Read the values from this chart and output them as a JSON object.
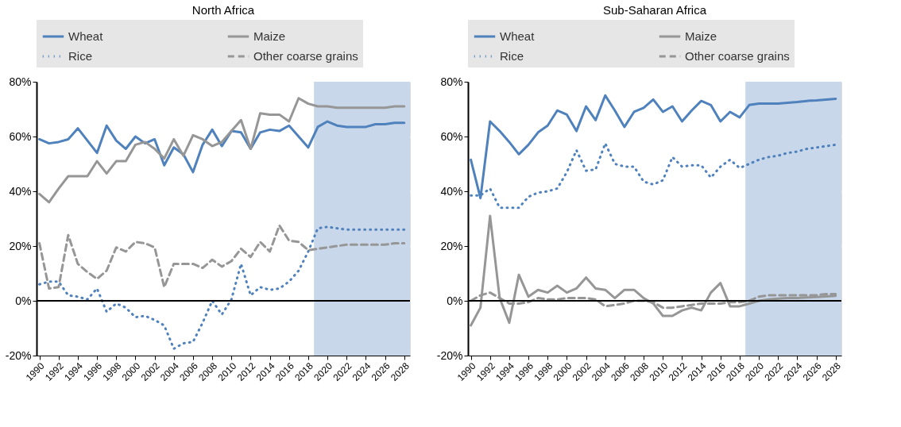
{
  "chart_data": [
    {
      "type": "line",
      "title": "North Africa",
      "x": [
        1990,
        1991,
        1992,
        1993,
        1994,
        1995,
        1996,
        1997,
        1998,
        1999,
        2000,
        2001,
        2002,
        2003,
        2004,
        2005,
        2006,
        2007,
        2008,
        2009,
        2010,
        2011,
        2012,
        2013,
        2014,
        2015,
        2016,
        2017,
        2018,
        2019,
        2020,
        2021,
        2022,
        2023,
        2024,
        2025,
        2026,
        2027,
        2028
      ],
      "series": [
        {
          "name": "Wheat",
          "color": "#4f81bd",
          "line_style": "solid",
          "values": [
            59,
            57.5,
            58,
            59,
            63,
            58.5,
            54,
            64,
            58.5,
            55.5,
            60,
            57.5,
            59,
            49.5,
            56,
            53.5,
            47,
            57,
            62.5,
            56.5,
            62,
            61.5,
            55.5,
            61.5,
            62.5,
            62,
            64,
            60,
            56,
            63.5,
            65.5,
            64,
            63.5,
            63.5,
            63.5,
            64.5,
            64.5,
            65,
            65
          ]
        },
        {
          "name": "Maize",
          "color": "#969696",
          "line_style": "solid",
          "values": [
            39,
            36,
            41,
            45.5,
            45.5,
            45.5,
            51,
            46.5,
            51,
            51,
            57,
            58,
            55.5,
            52,
            59,
            53,
            60.5,
            59,
            56.5,
            58,
            62,
            66,
            55.5,
            68.5,
            68,
            68,
            65.5,
            74,
            72,
            71,
            71,
            70.5,
            70.5,
            70.5,
            70.5,
            70.5,
            70.5,
            71,
            71
          ]
        },
        {
          "name": "Rice",
          "color": "#4f81bd",
          "line_style": "dotted",
          "values": [
            6,
            7,
            7,
            2,
            1.5,
            0.5,
            4.5,
            -4,
            -1,
            -2.5,
            -6,
            -5.5,
            -7,
            -9,
            -17.5,
            -15.5,
            -15,
            -8,
            0,
            -5,
            0.5,
            13.5,
            2,
            5,
            4,
            4.5,
            7,
            11,
            18,
            26.5,
            27,
            26.5,
            26,
            26,
            26,
            26,
            26,
            26,
            26
          ]
        },
        {
          "name": "Other coarse grains",
          "color": "#969696",
          "line_style": "dashed",
          "values": [
            21,
            4.5,
            5,
            24,
            13.5,
            10.5,
            8,
            11,
            19.5,
            18,
            21.5,
            21,
            19.5,
            5,
            13.5,
            13.5,
            13.5,
            12,
            15,
            12.5,
            14.5,
            19,
            16,
            21.5,
            18,
            27.5,
            22,
            21.5,
            18.5,
            19,
            19.5,
            20,
            20.5,
            20.5,
            20.5,
            20.5,
            20.5,
            21,
            21
          ]
        }
      ],
      "xlim": [
        1989.7,
        2028.6
      ],
      "xticks": [
        1990,
        1992,
        1994,
        1996,
        1998,
        2000,
        2002,
        2004,
        2006,
        2008,
        2010,
        2012,
        2014,
        2016,
        2018,
        2020,
        2022,
        2024,
        2026,
        2028
      ],
      "ylim": [
        -20,
        80
      ],
      "yticks": [
        {
          "value": -20,
          "label": "-20%"
        },
        {
          "value": 0,
          "label": "0%"
        },
        {
          "value": 20,
          "label": "20%"
        },
        {
          "value": 40,
          "label": "40%"
        },
        {
          "value": 60,
          "label": "60%"
        },
        {
          "value": 80,
          "label": "80%"
        }
      ],
      "bands": [
        {
          "axis": "x",
          "from": 2018.6,
          "to": 2028.6,
          "color": "#c8d7ea"
        }
      ],
      "ref_lines": [
        {
          "axis": "y",
          "value": 0,
          "color": "#000000"
        }
      ],
      "grid": true,
      "legend": "top"
    },
    {
      "type": "line",
      "title": "Sub-Saharan Africa",
      "x": [
        1990,
        1991,
        1992,
        1993,
        1994,
        1995,
        1996,
        1997,
        1998,
        1999,
        2000,
        2001,
        2002,
        2003,
        2004,
        2005,
        2006,
        2007,
        2008,
        2009,
        2010,
        2011,
        2012,
        2013,
        2014,
        2015,
        2016,
        2017,
        2018,
        2019,
        2020,
        2021,
        2022,
        2023,
        2024,
        2025,
        2026,
        2027,
        2028
      ],
      "series": [
        {
          "name": "Wheat",
          "color": "#4f81bd",
          "line_style": "solid",
          "values": [
            51.5,
            37.5,
            65.5,
            62,
            58,
            53.5,
            57,
            61.5,
            64,
            69.5,
            68,
            62,
            71,
            66,
            75,
            69.5,
            63.5,
            69,
            70.5,
            73.5,
            69,
            71,
            65.5,
            69.5,
            73,
            71.5,
            65.5,
            69,
            67,
            71.5,
            72,
            72,
            72,
            72.3,
            72.6,
            73,
            73.2,
            73.5,
            73.8
          ]
        },
        {
          "name": "Maize",
          "color": "#969696",
          "line_style": "solid",
          "values": [
            -9,
            -2.5,
            31,
            1,
            -8,
            9.5,
            1.5,
            4,
            3,
            5.5,
            3,
            4.5,
            8.5,
            4.5,
            4,
            1,
            4,
            4,
            1,
            -1,
            -5.5,
            -5.5,
            -3.5,
            -2.5,
            -3.5,
            3,
            6.5,
            -2,
            -2,
            -1,
            0,
            0.5,
            0.8,
            1,
            1,
            1.2,
            1.4,
            1.6,
            1.8
          ]
        },
        {
          "name": "Rice",
          "color": "#4f81bd",
          "line_style": "dotted",
          "values": [
            38.5,
            38.5,
            41,
            34,
            34,
            34,
            38,
            39.5,
            40,
            41,
            47,
            55,
            47.5,
            48,
            57.5,
            50,
            49,
            49,
            43.5,
            42.5,
            44,
            52.5,
            49,
            49.5,
            49.5,
            45,
            49,
            51.5,
            48.5,
            50,
            51.5,
            52.5,
            53,
            54,
            54.5,
            55.5,
            56,
            56.5,
            57
          ]
        },
        {
          "name": "Other coarse grains",
          "color": "#969696",
          "line_style": "dashed",
          "values": [
            0,
            2,
            3,
            1,
            -1,
            -1,
            -0.5,
            1,
            0.5,
            0.5,
            1,
            1,
            1,
            0.5,
            -2,
            -1.5,
            -1,
            0,
            0,
            -0.5,
            -2.5,
            -2.5,
            -2,
            -1.5,
            -1,
            -1,
            -1,
            -0.5,
            -0.5,
            0,
            1.5,
            2,
            2,
            2,
            2,
            2,
            2,
            2.5,
            2.5
          ]
        }
      ],
      "xlim": [
        1989.7,
        2028.6
      ],
      "xticks": [
        1990,
        1992,
        1994,
        1996,
        1998,
        2000,
        2002,
        2004,
        2006,
        2008,
        2010,
        2012,
        2014,
        2016,
        2018,
        2020,
        2022,
        2024,
        2026,
        2028
      ],
      "ylim": [
        -20,
        80
      ],
      "yticks": [
        {
          "value": -20,
          "label": "-20%"
        },
        {
          "value": 0,
          "label": "0%"
        },
        {
          "value": 20,
          "label": "20%"
        },
        {
          "value": 40,
          "label": "40%"
        },
        {
          "value": 60,
          "label": "60%"
        },
        {
          "value": 80,
          "label": "80%"
        }
      ],
      "bands": [
        {
          "axis": "x",
          "from": 2018.6,
          "to": 2028.6,
          "color": "#c8d7ea"
        }
      ],
      "ref_lines": [
        {
          "axis": "y",
          "value": 0,
          "color": "#000000"
        }
      ],
      "grid": true,
      "legend": "top"
    }
  ]
}
